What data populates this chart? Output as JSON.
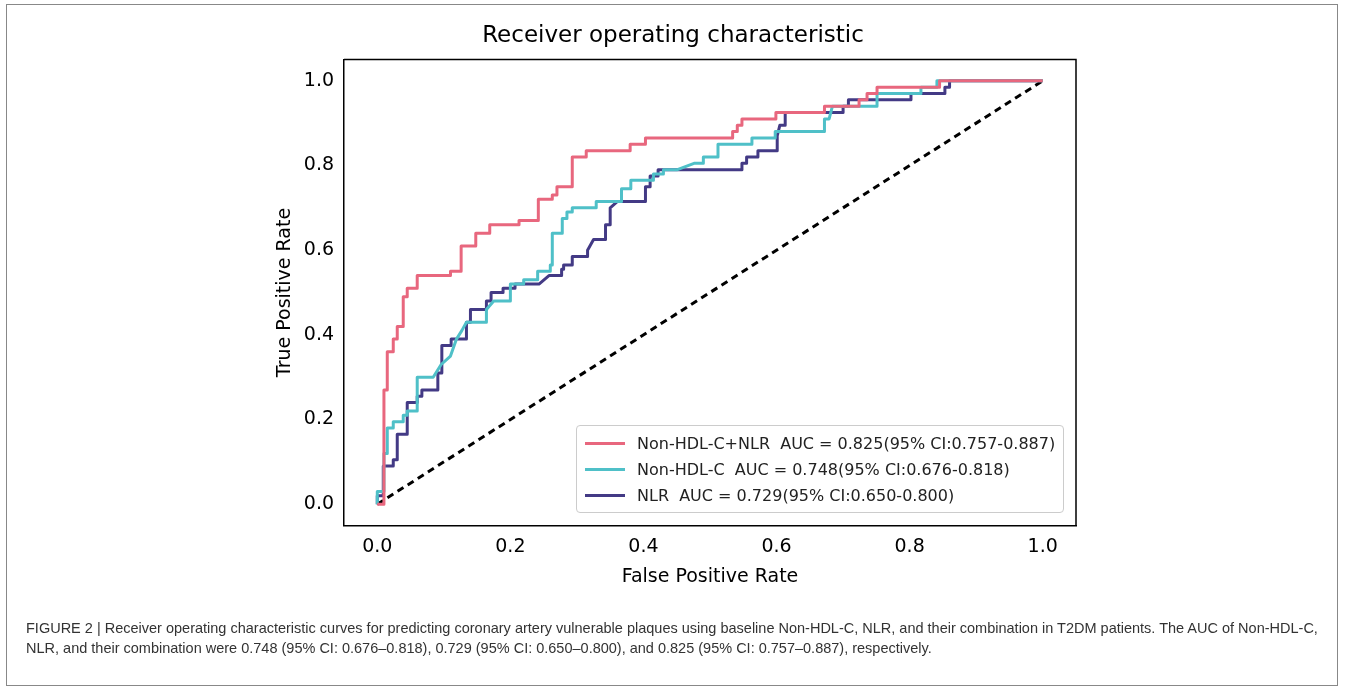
{
  "chart_data": {
    "type": "line",
    "title": "Receiver operating characteristic",
    "xlabel": "False Positive Rate",
    "ylabel": "True Positive Rate",
    "xlim": [
      -0.05,
      1.05
    ],
    "ylim": [
      -0.05,
      1.05
    ],
    "xticks": [
      {
        "value": 0,
        "label": "0.0"
      },
      0.2,
      0.4,
      0.6,
      0.8,
      {
        "value": 1,
        "label": "1.0"
      }
    ],
    "yticks": [
      {
        "value": 0,
        "label": "0.0"
      },
      0.2,
      0.4,
      0.6,
      0.8,
      {
        "value": 1,
        "label": "1.0"
      }
    ],
    "grid": false,
    "legend": "bottom right",
    "marker": "none",
    "series": [
      {
        "name": "Non-HDL-C+NLR  AUC = 0.825(95% CI:0.757-0.887)",
        "color": "#e8677e",
        "line_style": "solid",
        "x": [
          0,
          0.01,
          0.01,
          0.015,
          0.015,
          0.024,
          0.024,
          0.03,
          0.03,
          0.039,
          0.039,
          0.045,
          0.045,
          0.06,
          0.06,
          0.11,
          0.11,
          0.126,
          0.126,
          0.148,
          0.148,
          0.169,
          0.169,
          0.213,
          0.213,
          0.242,
          0.242,
          0.263,
          0.263,
          0.27,
          0.27,
          0.293,
          0.293,
          0.314,
          0.314,
          0.38,
          0.38,
          0.403,
          0.403,
          0.534,
          0.534,
          0.541,
          0.541,
          0.548,
          0.548,
          0.599,
          0.599,
          0.672,
          0.672,
          0.724,
          0.724,
          0.736,
          0.736,
          0.751,
          0.751,
          0.845,
          0.845,
          1
        ],
        "values": [
          0,
          0,
          0.27,
          0.27,
          0.36,
          0.36,
          0.39,
          0.39,
          0.42,
          0.42,
          0.49,
          0.49,
          0.51,
          0.51,
          0.54,
          0.54,
          0.55,
          0.55,
          0.61,
          0.61,
          0.64,
          0.64,
          0.66,
          0.66,
          0.67,
          0.67,
          0.72,
          0.72,
          0.73,
          0.73,
          0.75,
          0.75,
          0.82,
          0.82,
          0.835,
          0.835,
          0.85,
          0.85,
          0.865,
          0.865,
          0.88,
          0.88,
          0.895,
          0.895,
          0.91,
          0.91,
          0.925,
          0.925,
          0.94,
          0.94,
          0.955,
          0.955,
          0.97,
          0.97,
          0.985,
          0.985,
          1,
          1
        ]
      },
      {
        "name": "Non-HDL-C  AUC = 0.748(95% CI:0.676-0.818)",
        "color": "#4fc0c8",
        "line_style": "solid",
        "x": [
          0,
          0,
          0.01,
          0.01,
          0.015,
          0.015,
          0.024,
          0.024,
          0.039,
          0.039,
          0.045,
          0.045,
          0.06,
          0.06,
          0.084,
          0.096,
          0.11,
          0.119,
          0.127,
          0.134,
          0.164,
          0.164,
          0.175,
          0.2,
          0.2,
          0.22,
          0.22,
          0.241,
          0.241,
          0.26,
          0.26,
          0.263,
          0.263,
          0.278,
          0.278,
          0.285,
          0.285,
          0.293,
          0.293,
          0.329,
          0.329,
          0.367,
          0.367,
          0.381,
          0.381,
          0.415,
          0.415,
          0.43,
          0.43,
          0.451,
          0.476,
          0.49,
          0.49,
          0.512,
          0.512,
          0.563,
          0.563,
          0.598,
          0.598,
          0.672,
          0.672,
          0.679,
          0.684,
          0.751,
          0.751,
          0.817,
          0.817,
          0.841,
          0.841,
          1
        ],
        "values": [
          0,
          0.03,
          0.03,
          0.12,
          0.12,
          0.18,
          0.18,
          0.195,
          0.195,
          0.21,
          0.21,
          0.22,
          0.22,
          0.3,
          0.3,
          0.33,
          0.35,
          0.39,
          0.41,
          0.43,
          0.43,
          0.46,
          0.48,
          0.48,
          0.52,
          0.52,
          0.53,
          0.53,
          0.55,
          0.55,
          0.565,
          0.565,
          0.64,
          0.64,
          0.675,
          0.675,
          0.69,
          0.69,
          0.7,
          0.7,
          0.715,
          0.715,
          0.745,
          0.745,
          0.765,
          0.765,
          0.78,
          0.78,
          0.79,
          0.79,
          0.805,
          0.805,
          0.82,
          0.82,
          0.85,
          0.85,
          0.865,
          0.865,
          0.88,
          0.88,
          0.91,
          0.91,
          0.94,
          0.94,
          0.97,
          0.97,
          0.985,
          0.985,
          1,
          1
        ]
      },
      {
        "name": "NLR  AUC = 0.729(95% CI:0.650-0.800)",
        "color": "#433a85",
        "line_style": "solid",
        "x": [
          0,
          0,
          0.009,
          0.009,
          0.024,
          0.024,
          0.03,
          0.03,
          0.045,
          0.045,
          0.06,
          0.06,
          0.067,
          0.067,
          0.091,
          0.091,
          0.097,
          0.097,
          0.111,
          0.111,
          0.134,
          0.134,
          0.14,
          0.14,
          0.164,
          0.164,
          0.171,
          0.171,
          0.189,
          0.189,
          0.207,
          0.207,
          0.243,
          0.258,
          0.277,
          0.277,
          0.28,
          0.28,
          0.293,
          0.293,
          0.316,
          0.316,
          0.325,
          0.343,
          0.343,
          0.35,
          0.35,
          0.361,
          0.403,
          0.403,
          0.41,
          0.41,
          0.422,
          0.422,
          0.548,
          0.548,
          0.555,
          0.555,
          0.572,
          0.572,
          0.601,
          0.601,
          0.605,
          0.613,
          0.613,
          0.7,
          0.7,
          0.708,
          0.708,
          0.802,
          0.802,
          0.853,
          0.853,
          0.86,
          0.86,
          1
        ],
        "values": [
          0,
          0.02,
          0.02,
          0.09,
          0.09,
          0.105,
          0.105,
          0.165,
          0.165,
          0.24,
          0.24,
          0.255,
          0.255,
          0.27,
          0.27,
          0.31,
          0.31,
          0.375,
          0.375,
          0.39,
          0.39,
          0.43,
          0.43,
          0.46,
          0.46,
          0.48,
          0.48,
          0.5,
          0.5,
          0.51,
          0.51,
          0.52,
          0.52,
          0.54,
          0.54,
          0.555,
          0.555,
          0.565,
          0.565,
          0.585,
          0.585,
          0.6,
          0.625,
          0.625,
          0.66,
          0.66,
          0.7,
          0.715,
          0.715,
          0.75,
          0.75,
          0.775,
          0.775,
          0.79,
          0.79,
          0.805,
          0.805,
          0.82,
          0.82,
          0.835,
          0.835,
          0.87,
          0.895,
          0.895,
          0.925,
          0.925,
          0.94,
          0.94,
          0.955,
          0.955,
          0.97,
          0.97,
          0.985,
          0.985,
          1,
          1
        ]
      },
      {
        "color": "#000000",
        "line_style": "dashed",
        "x": [
          0,
          1
        ],
        "values": [
          0,
          1
        ]
      }
    ],
    "annotations": [
      "FIGURE 2 | Receiver operating characteristic curves for predicting coronary artery vulnerable plaques using baseline Non-HDL-C, NLR, and their combination in T2DM patients. The AUC of Non-HDL-C, NLR, and their combination were 0.748 (95% CI: 0.676–0.818), 0.729 (95% CI: 0.650–0.800), and 0.825 (95% CI: 0.757–0.887), respectively."
    ]
  }
}
